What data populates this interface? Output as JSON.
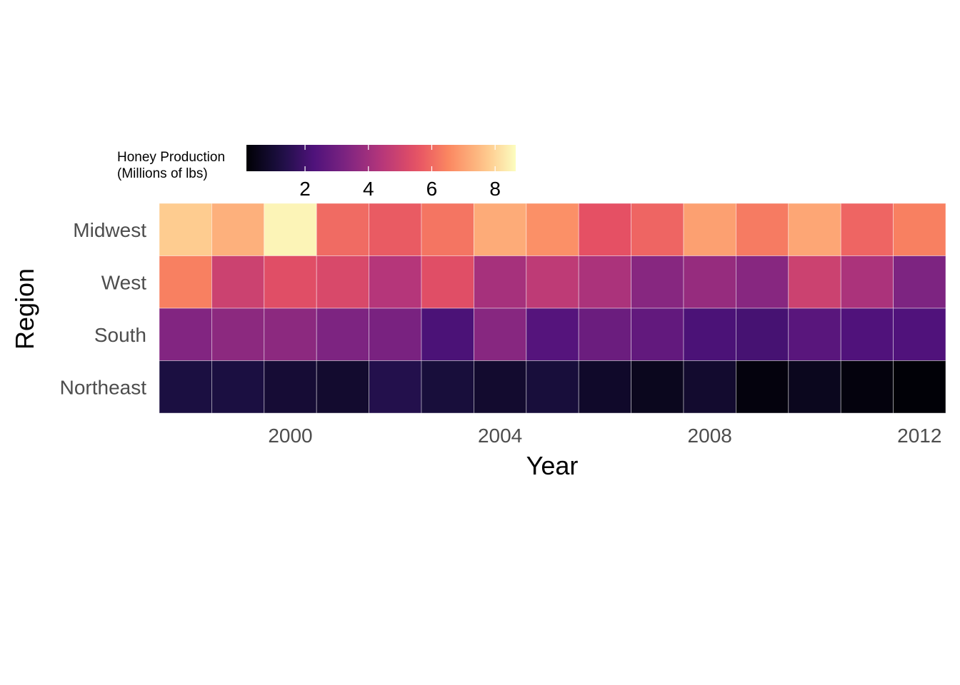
{
  "chart_data": {
    "type": "heatmap",
    "title": "",
    "xlabel": "Year",
    "ylabel": "Region",
    "x": [
      1998,
      1999,
      2000,
      2001,
      2002,
      2003,
      2004,
      2005,
      2006,
      2007,
      2008,
      2009,
      2010,
      2011,
      2012
    ],
    "x_ticks": [
      2000,
      2004,
      2008,
      2012
    ],
    "y_categories": [
      "Midwest",
      "West",
      "South",
      "Northeast"
    ],
    "values": [
      [
        7.8,
        7.3,
        8.5,
        6.0,
        5.7,
        6.2,
        7.2,
        6.7,
        5.5,
        5.9,
        7.0,
        6.3,
        7.1,
        5.9,
        6.4
      ],
      [
        6.4,
        4.9,
        5.4,
        5.2,
        4.4,
        5.4,
        4.1,
        4.6,
        4.2,
        3.5,
        3.8,
        3.5,
        4.9,
        4.2,
        3.3
      ],
      [
        3.4,
        3.6,
        3.6,
        3.3,
        3.2,
        2.2,
        3.5,
        2.4,
        2.9,
        2.7,
        2.2,
        2.1,
        2.5,
        2.3,
        2.3
      ],
      [
        1.2,
        1.2,
        1.0,
        0.9,
        1.4,
        1.1,
        0.9,
        1.1,
        0.8,
        0.6,
        0.9,
        0.3,
        0.6,
        0.3,
        0.2
      ]
    ],
    "legend": {
      "title_lines": [
        "Honey Production",
        "(Millions of lbs)"
      ],
      "ticks": [
        2,
        4,
        6,
        8
      ],
      "range": [
        0.15,
        8.65
      ],
      "placement": "top-left"
    },
    "colormap": "magma",
    "grid": false
  }
}
